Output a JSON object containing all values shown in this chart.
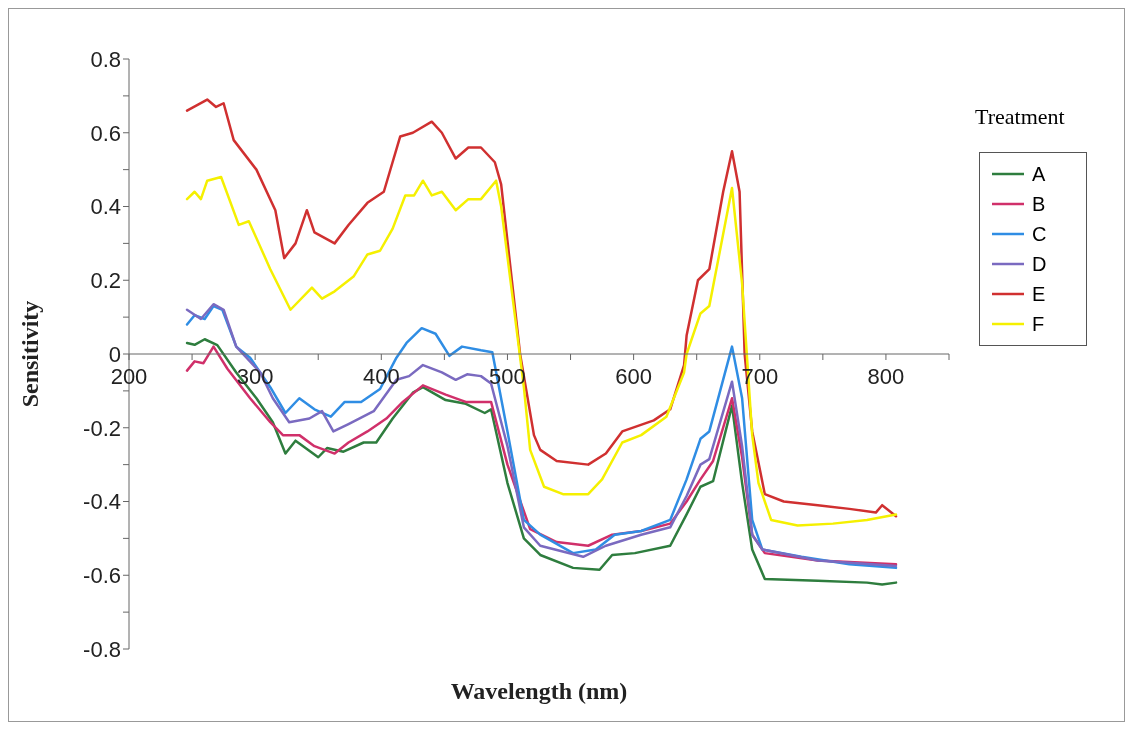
{
  "chart_data": {
    "type": "line",
    "xlabel": "Wavelength (nm)",
    "ylabel": "Sensitivity",
    "legend_title": "Treatment",
    "legend": "right",
    "grid": false,
    "marker": "none",
    "line_style": "solid",
    "xlim": [
      200,
      850
    ],
    "xticks": [
      200,
      {
        "value": 250,
        "label": null
      },
      300,
      {
        "value": 350,
        "label": null
      },
      400,
      {
        "value": 450,
        "label": null
      },
      500,
      {
        "value": 550,
        "label": null
      },
      600,
      {
        "value": 650,
        "label": null
      },
      700,
      {
        "value": 750,
        "label": null
      },
      800,
      {
        "value": 850,
        "label": null
      }
    ],
    "ylim": [
      -0.8,
      0.8
    ],
    "yticks": [
      -0.8,
      {
        "value": -0.7,
        "label": null
      },
      -0.6,
      {
        "value": -0.5,
        "label": null
      },
      -0.4,
      {
        "value": -0.3,
        "label": null
      },
      -0.2,
      {
        "value": -0.1,
        "label": null
      },
      0,
      {
        "value": 0.1,
        "label": null
      },
      0.2,
      {
        "value": 0.3,
        "label": null
      },
      0.4,
      {
        "value": 0.5,
        "label": null
      },
      0.6,
      {
        "value": 0.7,
        "label": null
      },
      0.8
    ],
    "series": [
      {
        "name": "A",
        "color": "#2e7d3e",
        "x": [
          246,
          252,
          260,
          270,
          285,
          301,
          314,
          324,
          332,
          350,
          357,
          370,
          386,
          396,
          409,
          425,
          433,
          451,
          467,
          482,
          487,
          500,
          513,
          526,
          552,
          573,
          583,
          601,
          629,
          642,
          653,
          663,
          678,
          686,
          694,
          704,
          746,
          785,
          797,
          808
        ],
        "values": [
          0.03,
          0.025,
          0.04,
          0.024,
          -0.05,
          -0.12,
          -0.185,
          -0.27,
          -0.235,
          -0.28,
          -0.255,
          -0.265,
          -0.24,
          -0.24,
          -0.175,
          -0.105,
          -0.09,
          -0.125,
          -0.135,
          -0.16,
          -0.15,
          -0.35,
          -0.5,
          -0.545,
          -0.58,
          -0.585,
          -0.545,
          -0.54,
          -0.52,
          -0.435,
          -0.36,
          -0.345,
          -0.14,
          -0.35,
          -0.53,
          -0.61,
          -0.615,
          -0.62,
          -0.625,
          -0.62
        ]
      },
      {
        "name": "B",
        "color": "#d0306a",
        "x": [
          246,
          252,
          259,
          267,
          278,
          296,
          312,
          322,
          335,
          347,
          363,
          374,
          389,
          404,
          417,
          433,
          451,
          463,
          467,
          487,
          500,
          518,
          539,
          564,
          583,
          606,
          629,
          642,
          653,
          663,
          678,
          686,
          694,
          704,
          746,
          808
        ],
        "values": [
          -0.045,
          -0.02,
          -0.025,
          0.02,
          -0.04,
          -0.12,
          -0.185,
          -0.22,
          -0.22,
          -0.25,
          -0.27,
          -0.24,
          -0.21,
          -0.175,
          -0.13,
          -0.085,
          -0.11,
          -0.125,
          -0.13,
          -0.13,
          -0.3,
          -0.475,
          -0.51,
          -0.52,
          -0.49,
          -0.48,
          -0.46,
          -0.4,
          -0.34,
          -0.29,
          -0.12,
          -0.28,
          -0.49,
          -0.54,
          -0.56,
          -0.57
        ]
      },
      {
        "name": "C",
        "color": "#2f8de4",
        "x": [
          246,
          252,
          260,
          267,
          274,
          285,
          296,
          312,
          324,
          335,
          347,
          360,
          371,
          384,
          399,
          412,
          420,
          432,
          443,
          454,
          464,
          479,
          488,
          500,
          513,
          526,
          552,
          570,
          585,
          606,
          629,
          642,
          653,
          660,
          678,
          686,
          694,
          702,
          733,
          771,
          808
        ],
        "values": [
          0.08,
          0.105,
          0.095,
          0.13,
          0.12,
          0.02,
          -0.01,
          -0.09,
          -0.16,
          -0.12,
          -0.15,
          -0.17,
          -0.13,
          -0.13,
          -0.095,
          -0.01,
          0.03,
          0.07,
          0.055,
          -0.005,
          0.02,
          0.01,
          0.005,
          -0.21,
          -0.45,
          -0.49,
          -0.54,
          -0.53,
          -0.49,
          -0.48,
          -0.45,
          -0.34,
          -0.23,
          -0.21,
          0.02,
          -0.12,
          -0.45,
          -0.53,
          -0.55,
          -0.57,
          -0.58
        ]
      },
      {
        "name": "D",
        "color": "#7a6ac0",
        "x": [
          246,
          257,
          267,
          275,
          285,
          304,
          314,
          327,
          343,
          353,
          362,
          374,
          394,
          412,
          422,
          433,
          448,
          459,
          468,
          479,
          487,
          500,
          513,
          526,
          560,
          578,
          606,
          629,
          642,
          653,
          660,
          678,
          686,
          694,
          702,
          746,
          808
        ],
        "values": [
          0.12,
          0.095,
          0.135,
          0.12,
          0.02,
          -0.05,
          -0.12,
          -0.185,
          -0.175,
          -0.155,
          -0.21,
          -0.19,
          -0.155,
          -0.07,
          -0.06,
          -0.03,
          -0.05,
          -0.07,
          -0.055,
          -0.06,
          -0.08,
          -0.25,
          -0.47,
          -0.52,
          -0.55,
          -0.52,
          -0.49,
          -0.47,
          -0.385,
          -0.3,
          -0.285,
          -0.075,
          -0.25,
          -0.49,
          -0.53,
          -0.56,
          -0.575
        ]
      },
      {
        "name": "E",
        "color": "#d03030",
        "x": [
          246,
          262,
          269,
          275,
          283,
          301,
          316,
          323,
          332,
          341,
          347,
          363,
          374,
          389,
          402,
          415,
          425,
          440,
          448,
          459,
          469,
          479,
          490,
          495,
          510,
          521,
          526,
          539,
          564,
          578,
          591,
          616,
          629,
          640,
          642,
          651,
          660,
          671,
          678,
          684,
          688,
          694,
          704,
          719,
          746,
          771,
          792,
          797,
          808
        ],
        "values": [
          0.66,
          0.69,
          0.67,
          0.68,
          0.58,
          0.5,
          0.39,
          0.26,
          0.3,
          0.39,
          0.33,
          0.3,
          0.35,
          0.41,
          0.44,
          0.59,
          0.6,
          0.63,
          0.6,
          0.53,
          0.56,
          0.56,
          0.52,
          0.46,
          0.0,
          -0.22,
          -0.26,
          -0.29,
          -0.3,
          -0.27,
          -0.21,
          -0.18,
          -0.15,
          -0.03,
          0.05,
          0.2,
          0.23,
          0.44,
          0.55,
          0.44,
          0.0,
          -0.21,
          -0.38,
          -0.4,
          -0.41,
          -0.42,
          -0.43,
          -0.41,
          -0.44
        ]
      },
      {
        "name": "F",
        "color": "#f5f000",
        "x": [
          246,
          252,
          257,
          262,
          273,
          287,
          295,
          312,
          328,
          345,
          353,
          363,
          378,
          389,
          399,
          409,
          419,
          426,
          433,
          440,
          448,
          459,
          469,
          479,
          491,
          495,
          513,
          518,
          529,
          544,
          564,
          575,
          591,
          606,
          626,
          640,
          642,
          653,
          660,
          678,
          686,
          694,
          699,
          709,
          730,
          758,
          785,
          808
        ],
        "values": [
          0.42,
          0.44,
          0.42,
          0.47,
          0.48,
          0.35,
          0.36,
          0.23,
          0.12,
          0.18,
          0.15,
          0.17,
          0.21,
          0.27,
          0.28,
          0.34,
          0.43,
          0.43,
          0.47,
          0.43,
          0.44,
          0.39,
          0.42,
          0.42,
          0.47,
          0.4,
          -0.09,
          -0.26,
          -0.36,
          -0.38,
          -0.38,
          -0.34,
          -0.24,
          -0.22,
          -0.17,
          -0.05,
          0.0,
          0.11,
          0.13,
          0.45,
          0.19,
          -0.22,
          -0.35,
          -0.45,
          -0.465,
          -0.46,
          -0.45,
          -0.435
        ]
      }
    ]
  }
}
